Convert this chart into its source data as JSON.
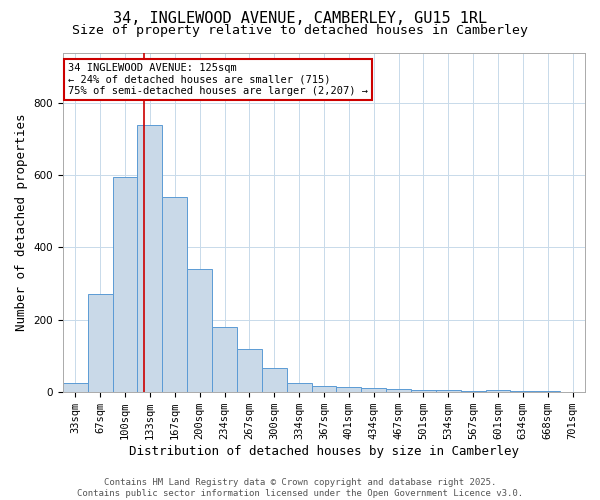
{
  "title": "34, INGLEWOOD AVENUE, CAMBERLEY, GU15 1RL",
  "subtitle": "Size of property relative to detached houses in Camberley",
  "xlabel": "Distribution of detached houses by size in Camberley",
  "ylabel": "Number of detached properties",
  "categories": [
    "33sqm",
    "67sqm",
    "100sqm",
    "133sqm",
    "167sqm",
    "200sqm",
    "234sqm",
    "267sqm",
    "300sqm",
    "334sqm",
    "367sqm",
    "401sqm",
    "434sqm",
    "467sqm",
    "501sqm",
    "534sqm",
    "567sqm",
    "601sqm",
    "634sqm",
    "668sqm",
    "701sqm"
  ],
  "values": [
    25,
    270,
    595,
    740,
    540,
    340,
    178,
    118,
    67,
    25,
    15,
    12,
    10,
    8,
    5,
    4,
    2,
    5,
    1,
    1,
    0
  ],
  "bar_color": "#c9d9e8",
  "bar_edge_color": "#5b9bd5",
  "background_color": "#ffffff",
  "grid_color": "#c8daea",
  "vline_x": 2.75,
  "vline_color": "#cc0000",
  "annotation_text": "34 INGLEWOOD AVENUE: 125sqm\n← 24% of detached houses are smaller (715)\n75% of semi-detached houses are larger (2,207) →",
  "annotation_box_color": "#ffffff",
  "annotation_box_edge": "#cc0000",
  "footer_line1": "Contains HM Land Registry data © Crown copyright and database right 2025.",
  "footer_line2": "Contains public sector information licensed under the Open Government Licence v3.0.",
  "ylim": [
    0,
    940
  ],
  "title_fontsize": 11,
  "subtitle_fontsize": 9.5,
  "axis_fontsize": 9,
  "tick_fontsize": 7.5,
  "annotation_fontsize": 7.5,
  "footer_fontsize": 6.5
}
